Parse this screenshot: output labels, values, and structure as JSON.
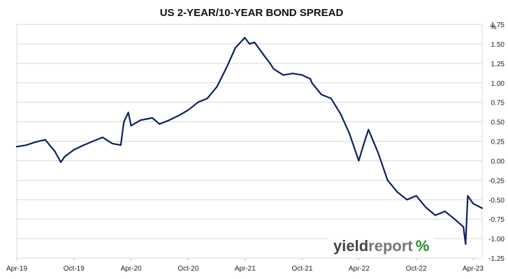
{
  "chart_data": {
    "type": "line",
    "title": "US 2-YEAR/10-YEAR BOND SPREAD",
    "y_unit": "%",
    "xlabel": "",
    "ylabel": "",
    "x_tick_labels": [
      "Apr-19",
      "Oct-19",
      "Apr-20",
      "Oct-20",
      "Apr-21",
      "Oct-21",
      "Apr-22",
      "Oct-22",
      "Apr-23"
    ],
    "y_tick_labels": [
      "1.75",
      "1.50",
      "1.25",
      "1.00",
      "0.75",
      "0.50",
      "0.25",
      "0.00",
      "-0.25",
      "-0.50",
      "-0.75",
      "-1.00",
      "-1.25"
    ],
    "ylim": [
      -1.25,
      1.75
    ],
    "xlim": [
      "2019-04-01",
      "2023-04-30"
    ],
    "grid": "horizontal",
    "y_axis_position": "right",
    "line_color": "#0d2060",
    "series": [
      {
        "x": [
          "2019-04-01",
          "2019-05-01",
          "2019-06-01",
          "2019-07-01",
          "2019-08-01",
          "2019-08-20",
          "2019-09-01",
          "2019-10-01",
          "2019-11-01",
          "2019-12-01",
          "2020-01-01",
          "2020-02-01",
          "2020-02-28",
          "2020-03-09",
          "2020-03-23",
          "2020-04-01",
          "2020-05-01",
          "2020-06-08",
          "2020-07-01",
          "2020-08-01",
          "2020-09-01",
          "2020-10-01",
          "2020-11-01",
          "2020-12-01",
          "2021-01-01",
          "2021-02-01",
          "2021-03-01",
          "2021-03-31",
          "2021-04-15",
          "2021-05-01",
          "2021-06-01",
          "2021-06-20",
          "2021-07-01",
          "2021-08-01",
          "2021-09-01",
          "2021-10-01",
          "2021-10-27",
          "2021-11-01",
          "2021-12-01",
          "2022-01-01",
          "2022-02-01",
          "2022-03-01",
          "2022-03-31",
          "2022-04-15",
          "2022-05-01",
          "2022-06-01",
          "2022-07-01",
          "2022-08-01",
          "2022-09-01",
          "2022-10-01",
          "2022-11-01",
          "2022-12-01",
          "2023-01-01",
          "2023-02-01",
          "2023-03-01",
          "2023-03-08",
          "2023-03-15",
          "2023-04-01",
          "2023-04-30"
        ],
        "values": [
          0.18,
          0.2,
          0.24,
          0.27,
          0.12,
          -0.02,
          0.05,
          0.14,
          0.2,
          0.25,
          0.3,
          0.22,
          0.2,
          0.5,
          0.62,
          0.45,
          0.52,
          0.55,
          0.47,
          0.52,
          0.58,
          0.65,
          0.75,
          0.8,
          0.95,
          1.2,
          1.45,
          1.58,
          1.5,
          1.52,
          1.35,
          1.25,
          1.18,
          1.1,
          1.12,
          1.1,
          1.05,
          1.0,
          0.85,
          0.8,
          0.6,
          0.35,
          0.0,
          0.2,
          0.4,
          0.1,
          -0.25,
          -0.4,
          -0.5,
          -0.45,
          -0.6,
          -0.7,
          -0.65,
          -0.75,
          -0.85,
          -1.07,
          -0.45,
          -0.55,
          -0.61
        ]
      }
    ]
  },
  "logo": {
    "part1": "yield",
    "part2": "report",
    "part3": "%"
  }
}
